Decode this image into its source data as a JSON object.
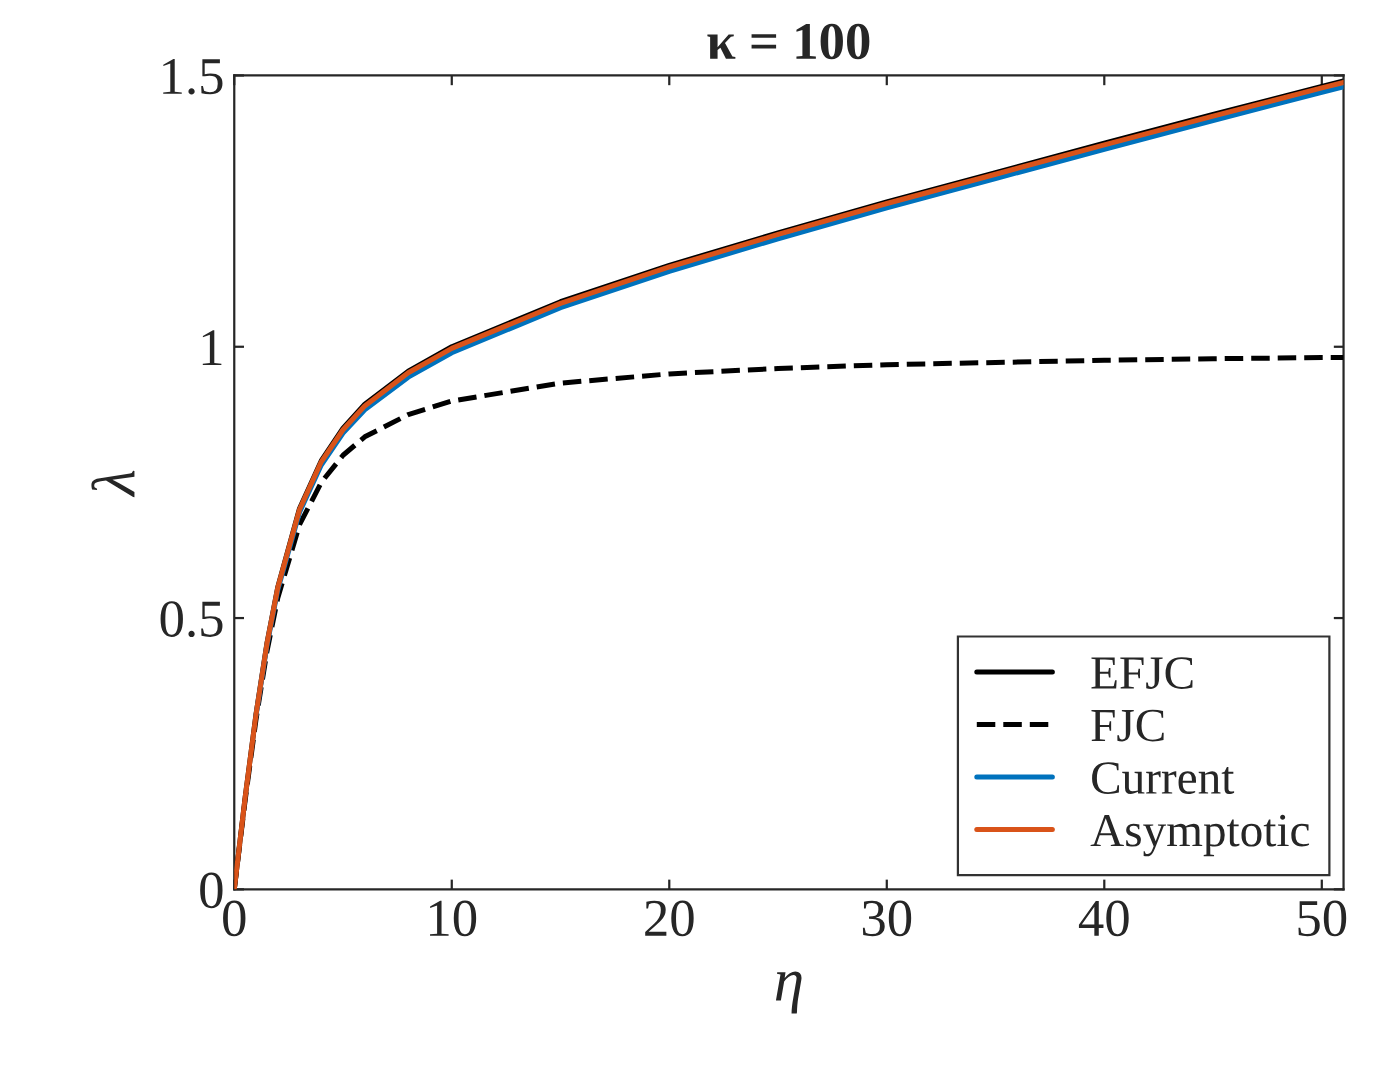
{
  "chart_data": {
    "type": "line",
    "title": "κ = 100",
    "xlabel": "η",
    "ylabel": "λ",
    "x": [
      0,
      0.5,
      1,
      1.5,
      2,
      3,
      4,
      5,
      6,
      8,
      10,
      15,
      20,
      25,
      30,
      35,
      40,
      45,
      50,
      51
    ],
    "series": [
      {
        "name": "EFJC",
        "color": "#000000",
        "line_style": "solid",
        "values": [
          0,
          0.169,
          0.323,
          0.453,
          0.557,
          0.702,
          0.79,
          0.85,
          0.894,
          0.955,
          1.0,
          1.083,
          1.15,
          1.21,
          1.267,
          1.321,
          1.375,
          1.428,
          1.48,
          1.49
        ]
      },
      {
        "name": "FJC",
        "color": "#000000",
        "line_style": "dashed",
        "values": [
          0,
          0.164,
          0.313,
          0.438,
          0.537,
          0.672,
          0.75,
          0.8,
          0.834,
          0.875,
          0.9,
          0.933,
          0.95,
          0.96,
          0.967,
          0.971,
          0.975,
          0.978,
          0.98,
          0.98
        ]
      },
      {
        "name": "Current",
        "color": "#0072bd",
        "line_style": "solid",
        "values": [
          null,
          null,
          0.32,
          0.449,
          0.552,
          0.695,
          0.782,
          0.841,
          0.884,
          0.944,
          0.989,
          1.072,
          1.139,
          1.199,
          1.256,
          1.31,
          1.364,
          1.417,
          1.469,
          1.479
        ]
      },
      {
        "name": "Asymptotic",
        "color": "#d95319",
        "line_style": "solid",
        "values": [
          0,
          0.169,
          0.322,
          0.452,
          0.556,
          0.7,
          0.788,
          0.847,
          0.891,
          0.952,
          0.997,
          1.08,
          1.147,
          1.207,
          1.264,
          1.318,
          1.372,
          1.425,
          1.477,
          1.487
        ]
      }
    ],
    "xlim": [
      0,
      51
    ],
    "ylim": [
      0,
      1.5
    ],
    "xticks": [
      0,
      10,
      20,
      30,
      40,
      50
    ],
    "yticks": [
      0,
      {
        "value": 0.5,
        "label": "0.5"
      },
      1,
      {
        "value": 1.5,
        "label": "1.5"
      }
    ],
    "legend": "bottom right",
    "grid": false
  }
}
